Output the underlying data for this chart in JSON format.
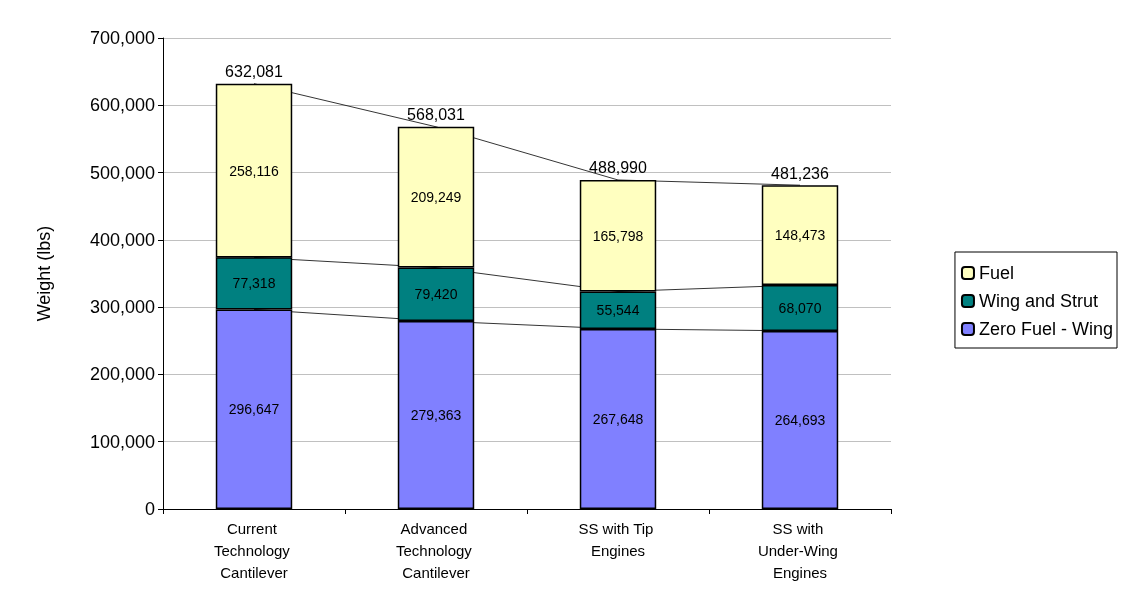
{
  "chart_data": {
    "type": "bar",
    "stacked": true,
    "ylabel": "Weight (lbs)",
    "categories": [
      "Current Technology Cantilever",
      "Advanced Technology Cantilever",
      "SS with Tip Engines",
      "SS with Under-Wing Engines"
    ],
    "series": [
      {
        "name": "Zero Fuel - Wing",
        "color": "#8080ff",
        "values": [
          296647,
          279363,
          267648,
          264693
        ],
        "value_labels": [
          "296,647",
          "279,363",
          "267,648",
          "264,693"
        ]
      },
      {
        "name": "Wing and Strut",
        "color": "#008080",
        "values": [
          77318,
          79420,
          55544,
          68070
        ],
        "value_labels": [
          "77,318",
          "79,420",
          "55,544",
          "68,070"
        ]
      },
      {
        "name": "Fuel",
        "color": "#ffffc0",
        "values": [
          258116,
          209249,
          165798,
          148473
        ],
        "value_labels": [
          "258,116",
          "209,249",
          "165,798",
          "148,473"
        ]
      }
    ],
    "totals": [
      "632,081",
      "568,031",
      "488,990",
      "481,236"
    ],
    "ylim": [
      0,
      700000
    ],
    "yticks": [
      0,
      {
        "value": 100000,
        "label": "100,000"
      },
      {
        "value": 200000,
        "label": "200,000"
      },
      {
        "value": 300000,
        "label": "300,000"
      },
      {
        "value": 400000,
        "label": "400,000"
      },
      {
        "value": 500000,
        "label": "500,000"
      },
      {
        "value": 600000,
        "label": "600,000"
      },
      {
        "value": 700000,
        "label": "700,000"
      }
    ],
    "grid": "y",
    "legend": "right"
  }
}
